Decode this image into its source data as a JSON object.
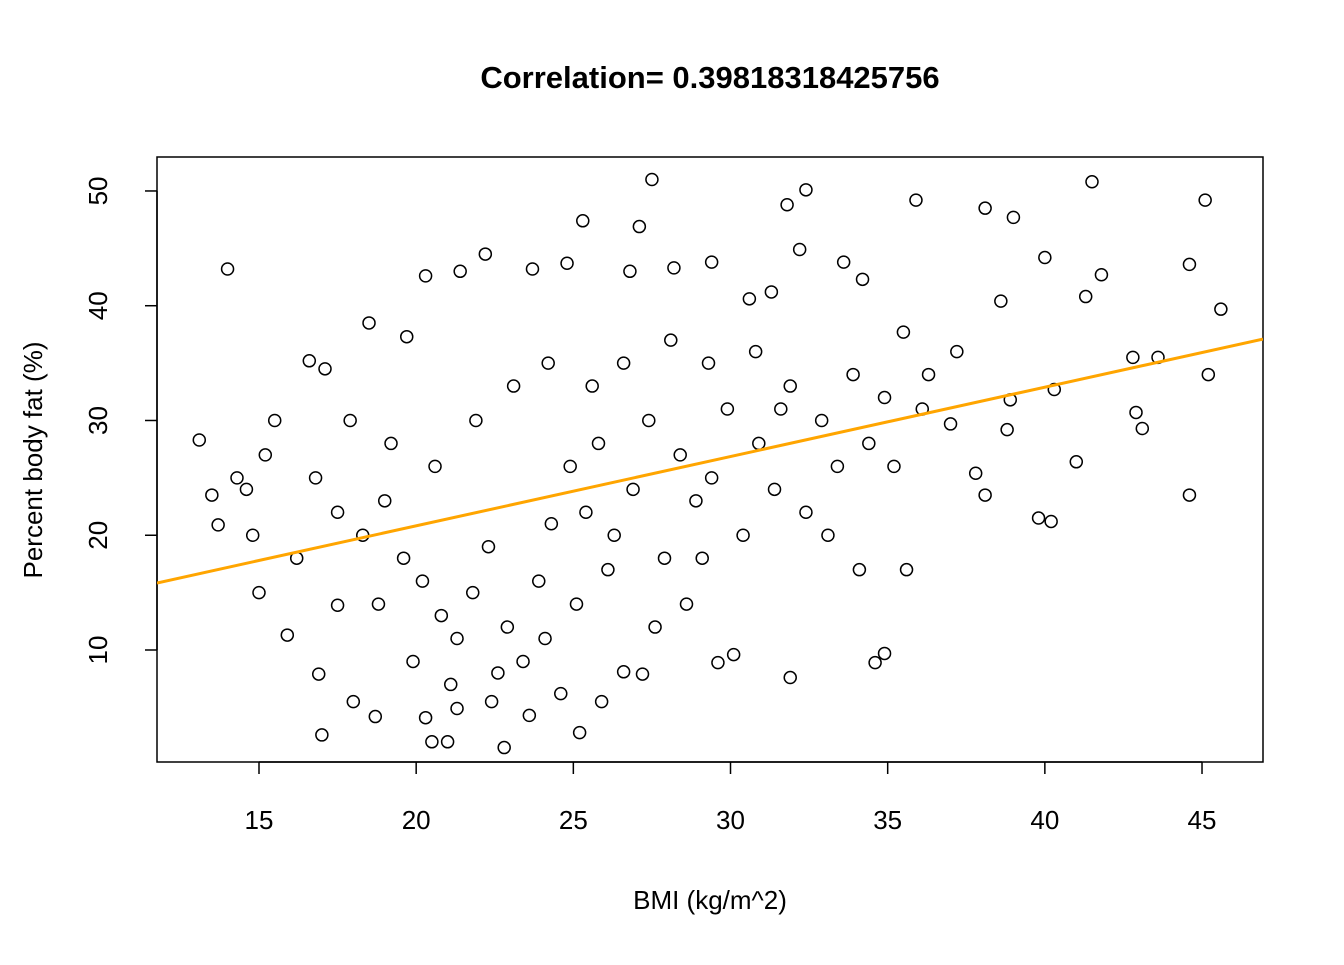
{
  "chart_data": {
    "type": "scatter",
    "title": "Correlation= 0.39818318425756",
    "xlabel": "BMI (kg/m^2)",
    "ylabel": "Percent body fat (%)",
    "x": [
      14,
      27.5,
      41.5,
      45.1,
      45.6,
      32.4,
      35.9,
      38.1,
      39,
      25.3,
      31.8,
      13.1,
      13.5,
      13.7,
      17,
      20.5,
      21,
      22.8,
      25.2,
      44.6,
      44.6,
      45.2,
      40.2,
      39.8,
      43.6,
      42.8,
      42.9,
      43.1,
      41,
      40,
      41.8,
      41.3,
      40.3,
      38.9,
      38.8,
      38.1,
      37.8,
      35.6,
      34.9,
      34.6,
      31.9,
      30.1,
      29.6,
      26.6,
      27.2,
      25.9,
      24.6,
      23.6,
      22.4,
      21.3,
      20.3,
      18.7,
      18,
      16.9,
      17.5,
      15.9,
      15,
      14.8,
      14.6,
      14.3,
      15.2,
      15.5,
      16.6,
      17.1,
      18.5,
      19.7,
      20.3,
      21.4,
      22.2,
      23.7,
      24.8,
      26.8,
      27.1,
      28.2,
      29.4,
      30.6,
      31.3,
      32.2,
      33.6,
      34.2,
      35.5,
      36.3,
      37,
      17.5,
      18.3,
      19,
      19.6,
      20.2,
      20.8,
      21.3,
      21.8,
      22.3,
      22.9,
      23.4,
      23.9,
      24.3,
      24.9,
      25.4,
      25.8,
      26.3,
      26.9,
      27.4,
      27.9,
      28.4,
      28.9,
      29.4,
      29.9,
      30.4,
      30.9,
      31.4,
      31.9,
      32.4,
      32.9,
      33.4,
      33.9,
      34.4,
      34.9,
      19.2,
      20.6,
      21.9,
      23.1,
      24.2,
      25.6,
      26.6,
      28.1,
      29.3,
      30.8,
      31.6,
      16.2,
      16.8,
      17.9,
      18.8,
      19.9,
      21.1,
      22.6,
      24.1,
      25.1,
      26.1,
      27.6,
      28.6,
      29.1,
      33.1,
      34.1,
      35.2,
      36.1,
      37.2,
      38.6
    ],
    "values": [
      43.2,
      51,
      50.8,
      49.2,
      39.7,
      50.1,
      49.2,
      48.5,
      47.7,
      47.4,
      48.8,
      28.3,
      23.5,
      20.9,
      2.6,
      2,
      2,
      1.5,
      2.8,
      43.6,
      23.5,
      34,
      21.2,
      21.5,
      35.5,
      35.5,
      30.7,
      29.3,
      26.4,
      44.2,
      42.7,
      40.8,
      32.7,
      31.8,
      29.2,
      23.5,
      25.4,
      17,
      9.7,
      8.9,
      7.6,
      9.6,
      8.9,
      8.1,
      7.9,
      5.5,
      6.2,
      4.3,
      5.5,
      4.9,
      4.1,
      4.2,
      5.5,
      7.9,
      13.9,
      11.3,
      15,
      20,
      24,
      25,
      27,
      30,
      35.2,
      34.5,
      38.5,
      37.3,
      42.6,
      43,
      44.5,
      43.2,
      43.7,
      43,
      46.9,
      43.3,
      43.8,
      40.6,
      41.2,
      44.9,
      43.8,
      42.3,
      37.7,
      34,
      29.7,
      22,
      20,
      23,
      18,
      16,
      13,
      11,
      15,
      19,
      12,
      9,
      16,
      21,
      26,
      22,
      28,
      20,
      24,
      30,
      18,
      27,
      23,
      25,
      31,
      20,
      28,
      24,
      33,
      22,
      30,
      26,
      34,
      28,
      32,
      28,
      26,
      30,
      33,
      35,
      33,
      35,
      37,
      35,
      36,
      31,
      18,
      25,
      30,
      14,
      9,
      7,
      8,
      11,
      14,
      17,
      12,
      14,
      18,
      20,
      17,
      26,
      31,
      36,
      40.4
    ],
    "point_color": "#000000",
    "fit": {
      "intercept": 8.74,
      "slope": 0.604,
      "color": "#ffa500"
    },
    "xlim": [
      11.755,
      46.94
    ],
    "xticks": [
      15,
      20,
      25,
      30,
      35,
      40,
      45
    ],
    "ylim": [
      0.24,
      52.96
    ],
    "yticks": [
      10,
      20,
      30,
      40,
      50
    ],
    "grid": false
  }
}
